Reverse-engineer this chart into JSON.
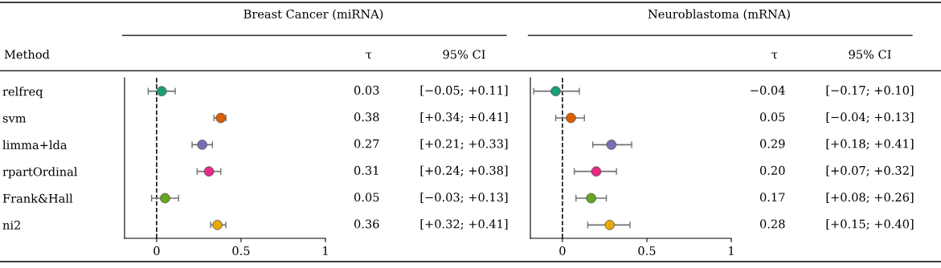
{
  "chart_data": [
    {
      "type": "scatter",
      "orientation": "horizontal",
      "title": "Breast Cancer (miRNA)",
      "ylabel": "Method",
      "annotations": [
        "τ",
        "95% CI",
        "[−0.05; +0.11]",
        "[+0.34; +0.41]",
        "[+0.21; +0.33]",
        "[+0.24; +0.38]",
        "[−0.03; +0.13]",
        "[+0.32; +0.41]"
      ],
      "categories": [
        "relfreq",
        "svm",
        "limma+lda",
        "rpartOrdinal",
        "Frank&Hall",
        "ni2"
      ],
      "values": [
        0.03,
        0.38,
        0.27,
        0.31,
        0.05,
        0.36
      ],
      "errors": [
        [
          -0.05,
          0.11
        ],
        [
          0.34,
          0.41
        ],
        [
          0.21,
          0.33
        ],
        [
          0.24,
          0.38
        ],
        [
          -0.03,
          0.13
        ],
        [
          0.32,
          0.41
        ]
      ],
      "value_labels": [
        "0.03",
        "0.38",
        "0.27",
        "0.31",
        "0.05",
        "0.36"
      ],
      "colors": [
        "#1b9e77",
        "#d95f02",
        "#7570b3",
        "#e7298a",
        "#66a61e",
        "#e6ab02"
      ],
      "xlim": [
        -0.19,
        1
      ],
      "xticks": [
        0,
        0.5,
        1
      ],
      "marker": "circle",
      "grid": false,
      "ref_lines": [
        {
          "axis": "x",
          "value": 0,
          "line_style": "dashed",
          "color": "#000000"
        }
      ]
    },
    {
      "type": "scatter",
      "orientation": "horizontal",
      "title": "Neuroblastoma (mRNA)",
      "annotations": [
        "τ",
        "95% CI",
        "[−0.17; +0.10]",
        "[−0.04; +0.13]",
        "[+0.18; +0.41]",
        "[+0.07; +0.32]",
        "[+0.08; +0.26]",
        "[+0.15; +0.40]"
      ],
      "categories": [
        null,
        null,
        null,
        null,
        null,
        null
      ],
      "values": [
        -0.04,
        0.05,
        0.29,
        0.2,
        0.17,
        0.28
      ],
      "errors": [
        [
          -0.17,
          0.1
        ],
        [
          -0.04,
          0.13
        ],
        [
          0.18,
          0.41
        ],
        [
          0.07,
          0.32
        ],
        [
          0.08,
          0.26
        ],
        [
          0.15,
          0.4
        ]
      ],
      "value_labels": [
        "−0.04",
        "0.05",
        "0.29",
        "0.20",
        "0.17",
        "0.28"
      ],
      "colors": [
        "#1b9e77",
        "#d95f02",
        "#7570b3",
        "#e7298a",
        "#66a61e",
        "#e6ab02"
      ],
      "xlim": [
        -0.19,
        1
      ],
      "xticks": [
        0,
        0.5,
        1
      ],
      "marker": "circle",
      "grid": false,
      "tick_labels": "x",
      "ref_lines": [
        {
          "axis": "x",
          "value": 0,
          "line_style": "dashed",
          "color": "#000000"
        }
      ]
    }
  ]
}
